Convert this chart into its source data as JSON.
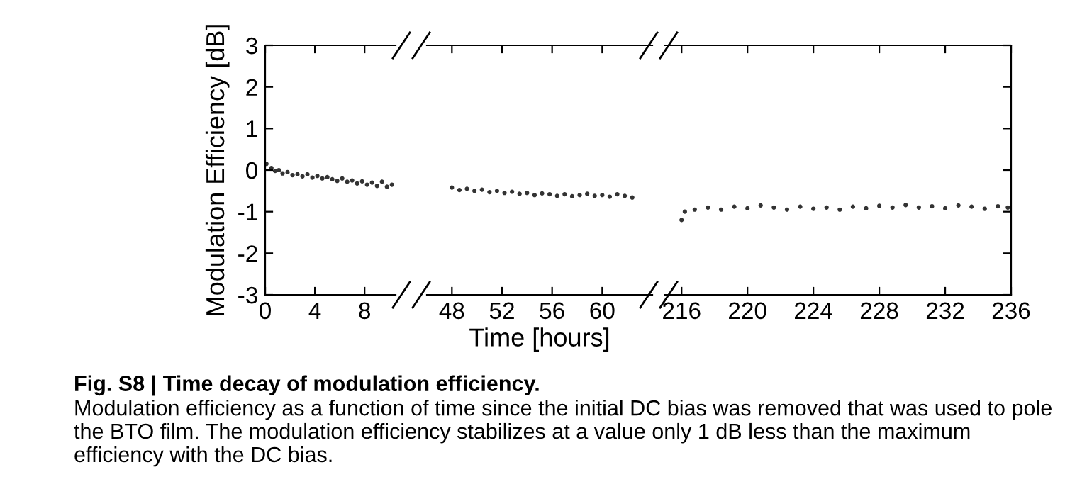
{
  "chart_data": [
    {
      "type": "scatter",
      "ylabel": "Modulation Efficiency [dB]",
      "xlim": [
        0,
        10.5
      ],
      "xticks": [
        0,
        4,
        8
      ],
      "ylim": [
        -3,
        3
      ],
      "yticks": [
        -3,
        -2,
        -1,
        0,
        1,
        2,
        3
      ],
      "marker": "circle",
      "grid": false,
      "annotations": [
        "Fig. S8 | Time decay of modulation efficiency.",
        "Modulation efficiency as a function of time since the initial DC bias was removed that was used to pole the BTO film. The modulation efficiency stabilizes at a value only 1 dB less than the maximum efficiency with the DC bias."
      ],
      "series": [
        {
          "color": "#333333",
          "x": [
            0.1,
            0.5,
            0.8,
            1.1,
            1.4,
            1.8,
            2.2,
            2.6,
            3,
            3.4,
            3.8,
            4.2,
            4.6,
            5,
            5.4,
            5.8,
            6.2,
            6.6,
            7,
            7.4,
            7.8,
            8.2,
            8.6,
            9,
            9.4,
            9.8,
            10.2
          ],
          "values": [
            0.15,
            0.05,
            -0.02,
            0.0,
            -0.08,
            -0.05,
            -0.12,
            -0.1,
            -0.15,
            -0.1,
            -0.18,
            -0.14,
            -0.2,
            -0.17,
            -0.22,
            -0.26,
            -0.2,
            -0.28,
            -0.25,
            -0.32,
            -0.27,
            -0.35,
            -0.3,
            -0.38,
            -0.28,
            -0.4,
            -0.35
          ]
        }
      ]
    },
    {
      "type": "scatter",
      "xlabel": "Time [hours]",
      "xlim": [
        46,
        64
      ],
      "xticks": [
        48,
        52,
        56,
        60
      ],
      "ylim": [
        -3,
        3
      ],
      "yticks": [
        -3,
        -2,
        -1,
        0,
        1,
        2,
        3
      ],
      "tick_labels": "x",
      "marker": "circle",
      "grid": false,
      "series": [
        {
          "color": "#333333",
          "x": [
            48,
            48.6,
            49.2,
            49.8,
            50.4,
            51,
            51.6,
            52.2,
            52.8,
            53.4,
            54,
            54.6,
            55.2,
            55.8,
            56.4,
            57,
            57.6,
            58.2,
            58.8,
            59.4,
            60,
            60.6,
            61.2,
            61.8,
            62.4
          ],
          "values": [
            -0.42,
            -0.48,
            -0.45,
            -0.5,
            -0.47,
            -0.53,
            -0.5,
            -0.55,
            -0.52,
            -0.57,
            -0.55,
            -0.6,
            -0.56,
            -0.58,
            -0.62,
            -0.58,
            -0.63,
            -0.6,
            -0.57,
            -0.62,
            -0.6,
            -0.64,
            -0.58,
            -0.62,
            -0.66
          ]
        }
      ]
    },
    {
      "type": "scatter",
      "xlim": [
        215,
        236
      ],
      "xticks": [
        216,
        220,
        224,
        228,
        232,
        236
      ],
      "ylim": [
        -3,
        3
      ],
      "yticks": [
        -3,
        -2,
        -1,
        0,
        1,
        2,
        3
      ],
      "tick_labels": "x",
      "marker": "circle",
      "grid": false,
      "series": [
        {
          "color": "#333333",
          "x": [
            216,
            216.2,
            216.8,
            217.6,
            218.4,
            219.2,
            220,
            220.8,
            221.6,
            222.4,
            223.2,
            224,
            224.8,
            225.6,
            226.4,
            227.2,
            228,
            228.8,
            229.6,
            230.4,
            231.2,
            232,
            232.8,
            233.6,
            234.4,
            235.2,
            235.8
          ],
          "values": [
            -1.2,
            -1.0,
            -0.95,
            -0.9,
            -0.95,
            -0.88,
            -0.92,
            -0.85,
            -0.9,
            -0.95,
            -0.88,
            -0.93,
            -0.9,
            -0.95,
            -0.88,
            -0.92,
            -0.86,
            -0.9,
            -0.84,
            -0.9,
            -0.87,
            -0.92,
            -0.85,
            -0.88,
            -0.93,
            -0.87,
            -0.9
          ]
        }
      ]
    }
  ]
}
